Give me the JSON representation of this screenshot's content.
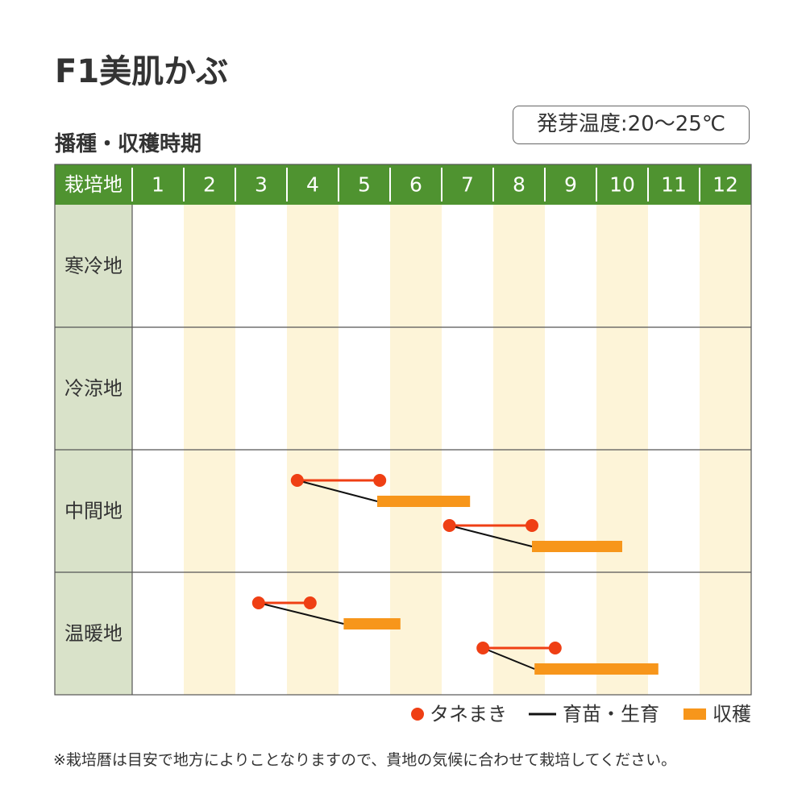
{
  "title": "F1美肌かぶ",
  "subtitle": "播種・収穫時期",
  "badge": "発芽温度:20〜25℃",
  "note": "※栽培暦は目安で地方によりことなりますので、貴地の気候に合わせて栽培してください。",
  "colors": {
    "header_bg": "#4f9330",
    "label_bg": "#d9e2c9",
    "stripe": "#fdf4d8",
    "sowing": "#ef3f14",
    "growing": "#111111",
    "harvest": "#f7961b"
  },
  "chart_data": {
    "type": "gantt",
    "header_label": "栽培地",
    "months": [
      "1",
      "2",
      "3",
      "4",
      "5",
      "6",
      "7",
      "8",
      "9",
      "10",
      "11",
      "12"
    ],
    "regions": [
      {
        "name": "寒冷地",
        "schedules": []
      },
      {
        "name": "冷涼地",
        "schedules": []
      },
      {
        "name": "中間地",
        "schedules": [
          {
            "sow_start": 4.2,
            "sow_end": 5.8,
            "harvest_start": 5.75,
            "harvest_end": 7.55
          },
          {
            "sow_start": 7.15,
            "sow_end": 8.75,
            "harvest_start": 8.75,
            "harvest_end": 10.5
          }
        ]
      },
      {
        "name": "温暖地",
        "schedules": [
          {
            "sow_start": 3.45,
            "sow_end": 4.45,
            "harvest_start": 5.1,
            "harvest_end": 6.2
          },
          {
            "sow_start": 7.8,
            "sow_end": 9.2,
            "harvest_start": 8.8,
            "harvest_end": 11.2
          }
        ]
      }
    ],
    "legend": [
      {
        "key": "sowing",
        "label": "タネまき"
      },
      {
        "key": "growing",
        "label": "育苗・生育"
      },
      {
        "key": "harvest",
        "label": "収穫"
      }
    ]
  }
}
